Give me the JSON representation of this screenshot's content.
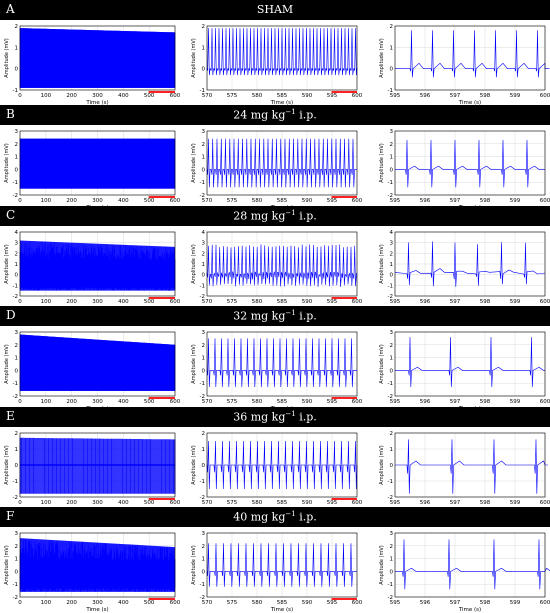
{
  "colors": {
    "trace": "#0000ff",
    "bar": "#000000",
    "scale_bar": "#ff0000",
    "grid": "#d9d9d9"
  },
  "panels": [
    {
      "letter": "A",
      "title": "SHAM"
    },
    {
      "letter": "B",
      "title": "24 mg kg",
      "title_sup": "−1",
      "title_suffix": " i.p."
    },
    {
      "letter": "C",
      "title": "28 mg kg",
      "title_sup": "−1",
      "title_suffix": " i.p."
    },
    {
      "letter": "D",
      "title": "32 mg kg",
      "title_sup": "−1",
      "title_suffix": " i.p."
    },
    {
      "letter": "E",
      "title": "36  mg kg",
      "title_sup": "−1",
      "title_suffix": " i.p."
    },
    {
      "letter": "F",
      "title": "40 mg kg",
      "title_sup": "−1",
      "title_suffix": " i.p."
    }
  ],
  "chart_data": [
    {
      "panel": "A",
      "column": "full",
      "type": "line",
      "xlabel": "Time (s)",
      "ylabel": "Amplitude (mV)",
      "xlim": [
        0,
        600
      ],
      "ylim": [
        -1,
        2
      ],
      "xticks": [
        0,
        100,
        200,
        300,
        400,
        500,
        600
      ],
      "yticks": [
        -1,
        0,
        1,
        2
      ],
      "signal": {
        "kind": "dense",
        "bottom": -0.9,
        "top": 1.9,
        "mid": 0.2,
        "end_top": 1.7
      }
    },
    {
      "panel": "A",
      "column": "zoom",
      "type": "line",
      "xlabel": "Time (s)",
      "ylabel": "Amplitude (mV)",
      "xlim": [
        570,
        600
      ],
      "ylim": [
        -1,
        2
      ],
      "xticks": [
        570,
        575,
        580,
        585,
        590,
        595,
        600
      ],
      "yticks": [
        -1,
        0,
        1,
        2
      ],
      "signal": {
        "kind": "spikes",
        "beat_interval_s": 0.7,
        "peak": 1.9,
        "trough": -0.3,
        "baseline": 0
      }
    },
    {
      "panel": "A",
      "column": "detail",
      "type": "line",
      "xlabel": "Time (s)",
      "ylabel": "Amplitude (mV)",
      "xlim": [
        595,
        600
      ],
      "ylim": [
        -1,
        2
      ],
      "xticks": [
        595,
        596,
        597,
        598,
        599,
        600
      ],
      "yticks": [
        -1,
        0,
        1,
        2
      ],
      "signal": {
        "kind": "ecg",
        "beat_times_s": [
          595.55,
          596.25,
          596.95,
          597.65,
          598.35,
          599.05,
          599.75
        ],
        "peak": 1.8,
        "trough": -0.4,
        "baseline": 0
      }
    },
    {
      "panel": "B",
      "column": "full",
      "type": "line",
      "xlabel": "Time (s)",
      "ylabel": "Amplitude (mV)",
      "xlim": [
        0,
        600
      ],
      "ylim": [
        -2,
        3
      ],
      "xticks": [
        0,
        100,
        200,
        300,
        400,
        500,
        600
      ],
      "yticks": [
        -2,
        -1,
        0,
        1,
        2,
        3
      ],
      "signal": {
        "kind": "dense",
        "bottom": -1.5,
        "top": 2.4,
        "mid": 0.5,
        "end_top": 2.4
      }
    },
    {
      "panel": "B",
      "column": "zoom",
      "type": "line",
      "xlabel": "Time (s)",
      "ylabel": "Amplitude (mV)",
      "xlim": [
        570,
        600
      ],
      "ylim": [
        -2,
        3
      ],
      "xticks": [
        570,
        575,
        580,
        585,
        590,
        595,
        600
      ],
      "yticks": [
        -2,
        -1,
        0,
        1,
        2,
        3
      ],
      "signal": {
        "kind": "spikes",
        "beat_interval_s": 0.85,
        "peak": 2.4,
        "trough": -1.4,
        "baseline": 0
      }
    },
    {
      "panel": "B",
      "column": "detail",
      "type": "line",
      "xlabel": "Time (s)",
      "ylabel": "Amplitude (mV)",
      "xlim": [
        595,
        600
      ],
      "ylim": [
        -2,
        3
      ],
      "xticks": [
        595,
        596,
        597,
        598,
        599,
        600
      ],
      "yticks": [
        -2,
        -1,
        0,
        1,
        2,
        3
      ],
      "signal": {
        "kind": "ecg",
        "beat_times_s": [
          595.4,
          596.2,
          597.0,
          597.8,
          598.6,
          599.4
        ],
        "peak": 2.3,
        "trough": -1.4,
        "baseline": 0
      }
    },
    {
      "panel": "C",
      "column": "full",
      "type": "line",
      "xlabel": "Time (s)",
      "ylabel": "Amplitude (mV)",
      "xlim": [
        0,
        600
      ],
      "ylim": [
        -2,
        4
      ],
      "xticks": [
        0,
        100,
        200,
        300,
        400,
        500,
        600
      ],
      "yticks": [
        -2,
        -1,
        0,
        1,
        2,
        3,
        4
      ],
      "signal": {
        "kind": "dense",
        "bottom": -1.5,
        "top": 3.2,
        "mid": 0.5,
        "end_top": 2.6,
        "noisy": true
      }
    },
    {
      "panel": "C",
      "column": "zoom",
      "type": "line",
      "xlabel": "Time (s)",
      "ylabel": "Amplitude (mV)",
      "xlim": [
        570,
        600
      ],
      "ylim": [
        -2,
        4
      ],
      "xticks": [
        570,
        575,
        580,
        585,
        590,
        595,
        600
      ],
      "yticks": [
        -2,
        -1,
        0,
        1,
        2,
        3,
        4
      ],
      "signal": {
        "kind": "spikes",
        "beat_interval_s": 0.75,
        "peak": 2.7,
        "trough": -1.0,
        "baseline": 0.1,
        "noisy": true
      }
    },
    {
      "panel": "C",
      "column": "detail",
      "type": "line",
      "xlabel": "Time (s)",
      "ylabel": "Amplitude (mV)",
      "xlim": [
        595,
        600
      ],
      "ylim": [
        -2,
        4
      ],
      "xticks": [
        595,
        596,
        597,
        598,
        599,
        600
      ],
      "yticks": [
        -2,
        -1,
        0,
        1,
        2,
        3,
        4
      ],
      "signal": {
        "kind": "ecg",
        "beat_times_s": [
          595.45,
          596.25,
          597.0,
          597.75,
          598.55,
          599.35
        ],
        "peak": 3.0,
        "trough": -1.0,
        "baseline": 0.2,
        "noisy": true
      }
    },
    {
      "panel": "D",
      "column": "full",
      "type": "line",
      "xlabel": "Time (s)",
      "ylabel": "Amplitude (mV)",
      "xlim": [
        0,
        600
      ],
      "ylim": [
        -2,
        3
      ],
      "xticks": [
        0,
        100,
        200,
        300,
        400,
        500,
        600
      ],
      "yticks": [
        -2,
        -1,
        0,
        1,
        2,
        3
      ],
      "signal": {
        "kind": "dense",
        "bottom": -1.6,
        "top": 2.8,
        "mid": 0.6,
        "end_top": 2.0
      }
    },
    {
      "panel": "D",
      "column": "zoom",
      "type": "line",
      "xlabel": "Time (s)",
      "ylabel": "Amplitude (mV)",
      "xlim": [
        570,
        600
      ],
      "ylim": [
        -2,
        3
      ],
      "xticks": [
        570,
        575,
        580,
        585,
        590,
        595,
        600
      ],
      "yticks": [
        -2,
        -1,
        0,
        1,
        2,
        3
      ],
      "signal": {
        "kind": "spikes",
        "beat_interval_s": 1.3,
        "peak": 2.5,
        "trough": -1.3,
        "baseline": 0
      }
    },
    {
      "panel": "D",
      "column": "detail",
      "type": "line",
      "xlabel": "Time (s)",
      "ylabel": "Amplitude (mV)",
      "xlim": [
        595,
        600
      ],
      "ylim": [
        -2,
        3
      ],
      "xticks": [
        595,
        596,
        597,
        598,
        599,
        600
      ],
      "yticks": [
        -2,
        -1,
        0,
        1,
        2,
        3
      ],
      "signal": {
        "kind": "ecg",
        "beat_times_s": [
          595.5,
          596.85,
          598.2,
          599.55
        ],
        "peak": 2.6,
        "trough": -1.3,
        "baseline": 0
      }
    },
    {
      "panel": "E",
      "column": "full",
      "type": "line",
      "xlabel": "Time (s)",
      "ylabel": "Amplitude (mV)",
      "xlim": [
        0,
        600
      ],
      "ylim": [
        -2,
        2
      ],
      "xticks": [
        0,
        100,
        200,
        300,
        400,
        500,
        600
      ],
      "yticks": [
        -2,
        -1,
        0,
        1,
        2
      ],
      "signal": {
        "kind": "dense",
        "bottom": -1.8,
        "top": 1.7,
        "mid": 0.0,
        "end_top": 1.6,
        "sparse": true
      }
    },
    {
      "panel": "E",
      "column": "zoom",
      "type": "line",
      "xlabel": "Time (s)",
      "ylabel": "Amplitude (mV)",
      "xlim": [
        570,
        600
      ],
      "ylim": [
        -2,
        2
      ],
      "xticks": [
        570,
        575,
        580,
        585,
        590,
        595,
        600
      ],
      "yticks": [
        -2,
        -1,
        0,
        1,
        2
      ],
      "signal": {
        "kind": "spikes",
        "beat_interval_s": 1.4,
        "peak": 1.5,
        "trough": -1.5,
        "baseline": 0
      }
    },
    {
      "panel": "E",
      "column": "detail",
      "type": "line",
      "xlabel": "Time (s)",
      "ylabel": "Amplitude (mV)",
      "xlim": [
        595,
        600
      ],
      "ylim": [
        -2,
        2
      ],
      "xticks": [
        595,
        596,
        597,
        598,
        599,
        600
      ],
      "yticks": [
        -2,
        -1,
        0,
        1,
        2
      ],
      "signal": {
        "kind": "ecg",
        "beat_times_s": [
          595.45,
          596.9,
          598.3,
          599.7
        ],
        "peak": 1.6,
        "trough": -1.8,
        "baseline": 0
      }
    },
    {
      "panel": "F",
      "column": "full",
      "type": "line",
      "xlabel": "Time (s)",
      "ylabel": "Amplitude (mV)",
      "xlim": [
        0,
        600
      ],
      "ylim": [
        -2,
        3
      ],
      "xticks": [
        0,
        100,
        200,
        300,
        400,
        500,
        600
      ],
      "yticks": [
        -2,
        -1,
        0,
        1,
        2,
        3
      ],
      "signal": {
        "kind": "dense",
        "bottom": -1.6,
        "top": 2.6,
        "mid": 0.0,
        "end_top": 1.9,
        "noisy": true
      }
    },
    {
      "panel": "F",
      "column": "zoom",
      "type": "line",
      "xlabel": "Time (s)",
      "ylabel": "Amplitude (mV)",
      "xlim": [
        570,
        600
      ],
      "ylim": [
        -2,
        3
      ],
      "xticks": [
        570,
        575,
        580,
        585,
        590,
        595,
        600
      ],
      "yticks": [
        -2,
        -1,
        0,
        1,
        2,
        3
      ],
      "signal": {
        "kind": "spikes",
        "beat_interval_s": 1.5,
        "peak": 2.2,
        "trough": -1.2,
        "baseline": 0
      }
    },
    {
      "panel": "F",
      "column": "detail",
      "type": "line",
      "xlabel": "Time (s)",
      "ylabel": "Amplitude (mV)",
      "xlim": [
        595,
        600
      ],
      "ylim": [
        -2,
        3
      ],
      "xticks": [
        595,
        596,
        597,
        598,
        599,
        600
      ],
      "yticks": [
        -2,
        -1,
        0,
        1,
        2,
        3
      ],
      "signal": {
        "kind": "ecg",
        "beat_times_s": [
          595.3,
          596.8,
          598.3,
          599.8
        ],
        "peak": 2.5,
        "trough": -1.4,
        "baseline": 0
      }
    }
  ]
}
